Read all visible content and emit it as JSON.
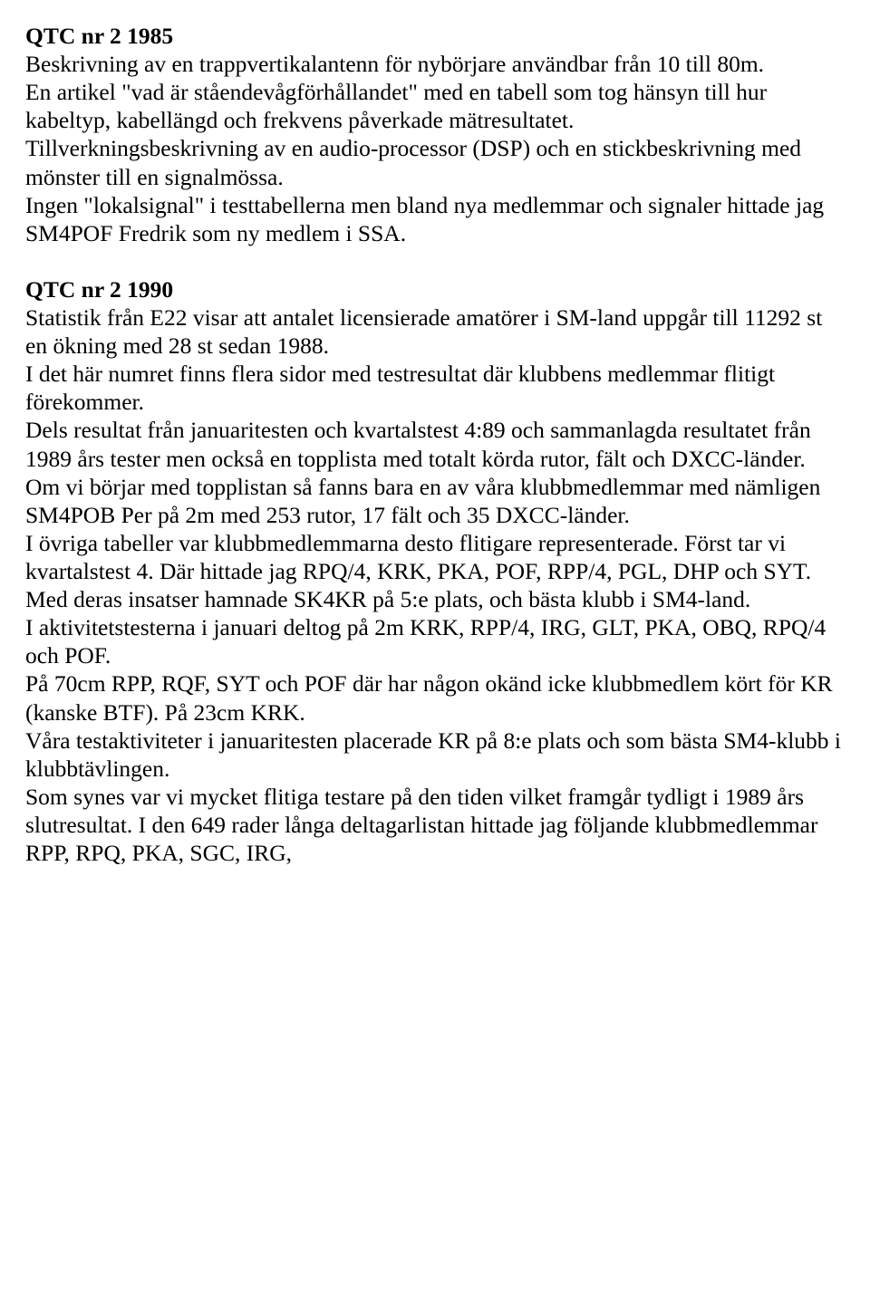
{
  "section1": {
    "title": "QTC nr 2 1985",
    "p1": "Beskrivning av en trappvertikalantenn för nybörjare användbar från 10 till 80m.",
    "p2": "En artikel \"vad är ståendevågförhållandet\" med en tabell som tog hänsyn till hur kabeltyp, kabellängd och frekvens påverkade mätresultatet.",
    "p3": "Tillverkningsbeskrivning av en audio-processor (DSP) och en stickbeskrivning med mönster till en signalmössa.",
    "p4": "Ingen \"lokalsignal\" i testtabellerna men bland nya medlemmar och signaler hittade jag SM4POF Fredrik som ny medlem i SSA."
  },
  "section2": {
    "title": "QTC nr 2 1990",
    "p1": "Statistik från E22 visar att antalet licensierade amatörer i SM-land uppgår till 11292 st en ökning med 28 st sedan 1988.",
    "p2": "I det här numret finns flera sidor med testresultat där klubbens medlemmar flitigt förekommer.",
    "p3": "Dels resultat från januaritesten och kvartalstest 4:89 och sammanlagda resultatet från 1989 års tester men också en topplista med totalt körda rutor, fält och DXCC-länder.",
    "p4": "Om vi börjar med topplistan så fanns bara en av våra klubbmedlemmar med nämligen SM4POB Per på 2m med 253 rutor, 17 fält och 35 DXCC-länder.",
    "p5": "I övriga tabeller var klubbmedlemmarna desto flitigare representerade. Först tar vi kvartalstest 4. Där hittade jag RPQ/4, KRK, PKA, POF, RPP/4, PGL, DHP och SYT. Med deras insatser hamnade SK4KR på 5:e plats, och bästa klubb i SM4-land.",
    "p6": "I aktivitetstesterna i januari deltog på 2m KRK, RPP/4, IRG, GLT, PKA, OBQ, RPQ/4 och POF.",
    "p7": "På 70cm RPP, RQF, SYT och POF där har någon okänd icke klubbmedlem kört för KR (kanske BTF). På 23cm KRK.",
    "p8": "Våra testaktiviteter i januaritesten placerade KR på 8:e plats och som bästa SM4-klubb i klubbtävlingen.",
    "p9": "Som synes var vi mycket flitiga testare på den tiden vilket framgår tydligt i 1989 års slutresultat. I den 649 rader långa deltagarlistan hittade jag följande klubbmedlemmar RPP, RPQ, PKA, SGC, IRG,"
  }
}
